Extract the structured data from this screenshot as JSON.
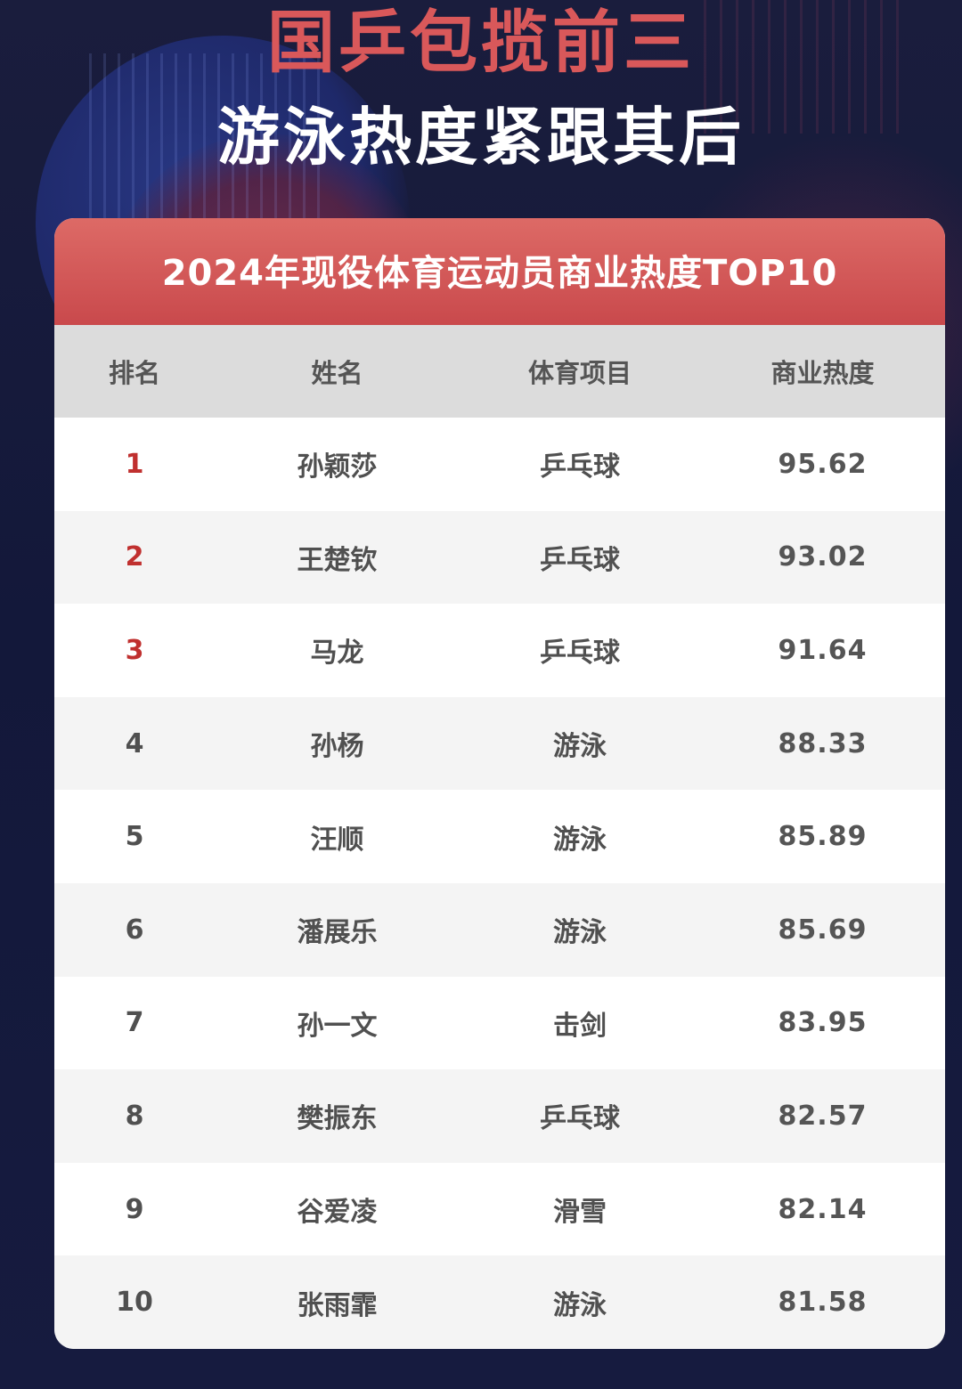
{
  "header": {
    "line1": "国乒包揽前三",
    "line2": "游泳热度紧跟其后"
  },
  "table": {
    "title": "2024年现役体育运动员商业热度TOP10",
    "columns": [
      "排名",
      "姓名",
      "体育项目",
      "商业热度"
    ],
    "highlight_color": "#c0302f",
    "rows": [
      {
        "rank": "1",
        "name": "孙颖莎",
        "sport": "乒乓球",
        "score": "95.62"
      },
      {
        "rank": "2",
        "name": "王楚钦",
        "sport": "乒乓球",
        "score": "93.02"
      },
      {
        "rank": "3",
        "name": "马龙",
        "sport": "乒乓球",
        "score": "91.64"
      },
      {
        "rank": "4",
        "name": "孙杨",
        "sport": "游泳",
        "score": "88.33"
      },
      {
        "rank": "5",
        "name": "汪顺",
        "sport": "游泳",
        "score": "85.89"
      },
      {
        "rank": "6",
        "name": "潘展乐",
        "sport": "游泳",
        "score": "85.69"
      },
      {
        "rank": "7",
        "name": "孙一文",
        "sport": "击剑",
        "score": "83.95"
      },
      {
        "rank": "8",
        "name": "樊振东",
        "sport": "乒乓球",
        "score": "82.57"
      },
      {
        "rank": "9",
        "name": "谷爱凌",
        "sport": "滑雪",
        "score": "82.14"
      },
      {
        "rank": "10",
        "name": "张雨霏",
        "sport": "游泳",
        "score": "81.58"
      }
    ]
  }
}
